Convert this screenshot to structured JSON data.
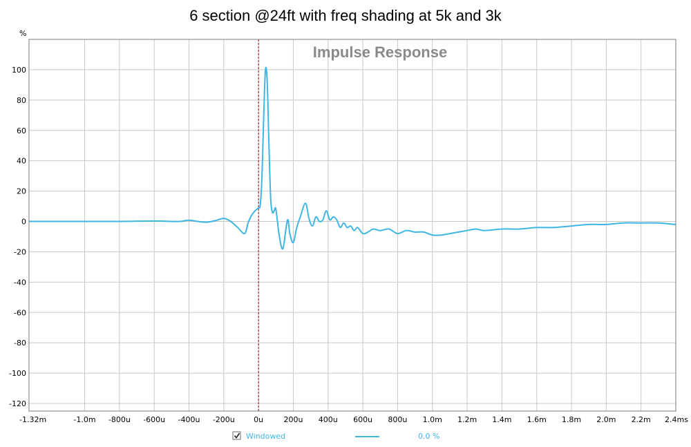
{
  "chart_data": {
    "type": "line",
    "title": "6 section @24ft with freq shading at 5k and 3k",
    "inner_title": "Impulse Response",
    "y_unit_label": "%",
    "xlim": [
      -1.32,
      2.4
    ],
    "ylim": [
      -125,
      120
    ],
    "x_tick_values": [
      -1.32,
      -1.0,
      -0.8,
      -0.6,
      -0.4,
      -0.2,
      0.0,
      0.2,
      0.4,
      0.6,
      0.8,
      1.0,
      1.2,
      1.4,
      1.6,
      1.8,
      2.0,
      2.2,
      2.4
    ],
    "x_tick_labels": [
      "-1.32m",
      "-1.0m",
      "-800u",
      "-600u",
      "-400u",
      "-200u",
      "0u",
      "200u",
      "400u",
      "600u",
      "800u",
      "1.0m",
      "1.2m",
      "1.4m",
      "1.6m",
      "1.8m",
      "2.0m",
      "2.2m",
      "2.4ms"
    ],
    "y_tick_values": [
      100,
      80,
      60,
      40,
      20,
      0,
      -20,
      -40,
      -60,
      -80,
      -100,
      -120
    ],
    "y_tick_labels": [
      "100",
      "80",
      "60",
      "40",
      "20",
      "0",
      "-20",
      "-40",
      "-60",
      "-80",
      "-100",
      "-120"
    ],
    "grid": true,
    "marker_x": 0.0,
    "colors": {
      "series": "#3db6e3",
      "marker": "#990000",
      "grid": "#c8c8c8",
      "frame": "#7a7a7a"
    },
    "legend": {
      "checkbox_checked": true,
      "label": "Windowed",
      "value": "0.0 %"
    },
    "series": [
      {
        "x": [
          -1.32,
          -1.0,
          -0.8,
          -0.6,
          -0.5,
          -0.45,
          -0.4,
          -0.35,
          -0.3,
          -0.25,
          -0.2,
          -0.16,
          -0.12,
          -0.08,
          -0.06,
          -0.04,
          -0.02,
          0.0,
          0.01,
          0.02,
          0.03,
          0.04,
          0.05,
          0.06,
          0.07,
          0.08,
          0.09,
          0.1,
          0.12,
          0.14,
          0.16,
          0.17,
          0.18,
          0.2,
          0.22,
          0.24,
          0.27,
          0.29,
          0.31,
          0.33,
          0.35,
          0.37,
          0.39,
          0.41,
          0.43,
          0.45,
          0.47,
          0.49,
          0.51,
          0.53,
          0.55,
          0.57,
          0.6,
          0.63,
          0.66,
          0.7,
          0.75,
          0.8,
          0.85,
          0.9,
          0.95,
          1.0,
          1.05,
          1.1,
          1.15,
          1.2,
          1.25,
          1.3,
          1.4,
          1.5,
          1.6,
          1.7,
          1.8,
          1.9,
          2.0,
          2.1,
          2.2,
          2.3,
          2.35,
          2.4
        ],
        "y": [
          0,
          0,
          0,
          0.3,
          0,
          0,
          0.8,
          0,
          -0.5,
          0.5,
          2,
          0,
          -4,
          -8,
          -1,
          4,
          7,
          9,
          11,
          30,
          70,
          100,
          92,
          50,
          15,
          6,
          7,
          8,
          -10,
          -18,
          -3,
          1,
          -8,
          -14,
          -4,
          3,
          12,
          2,
          -3,
          3,
          0,
          1,
          7,
          1,
          3,
          1,
          -4,
          -1,
          -4,
          -3,
          -6,
          -4,
          -8,
          -7,
          -5,
          -6,
          -5,
          -8,
          -6,
          -7,
          -7,
          -9,
          -9,
          -8,
          -7,
          -6,
          -5,
          -6,
          -5,
          -5,
          -4,
          -4,
          -3,
          -2,
          -2,
          -1,
          -1,
          -1,
          -1.5,
          -2
        ]
      }
    ]
  }
}
